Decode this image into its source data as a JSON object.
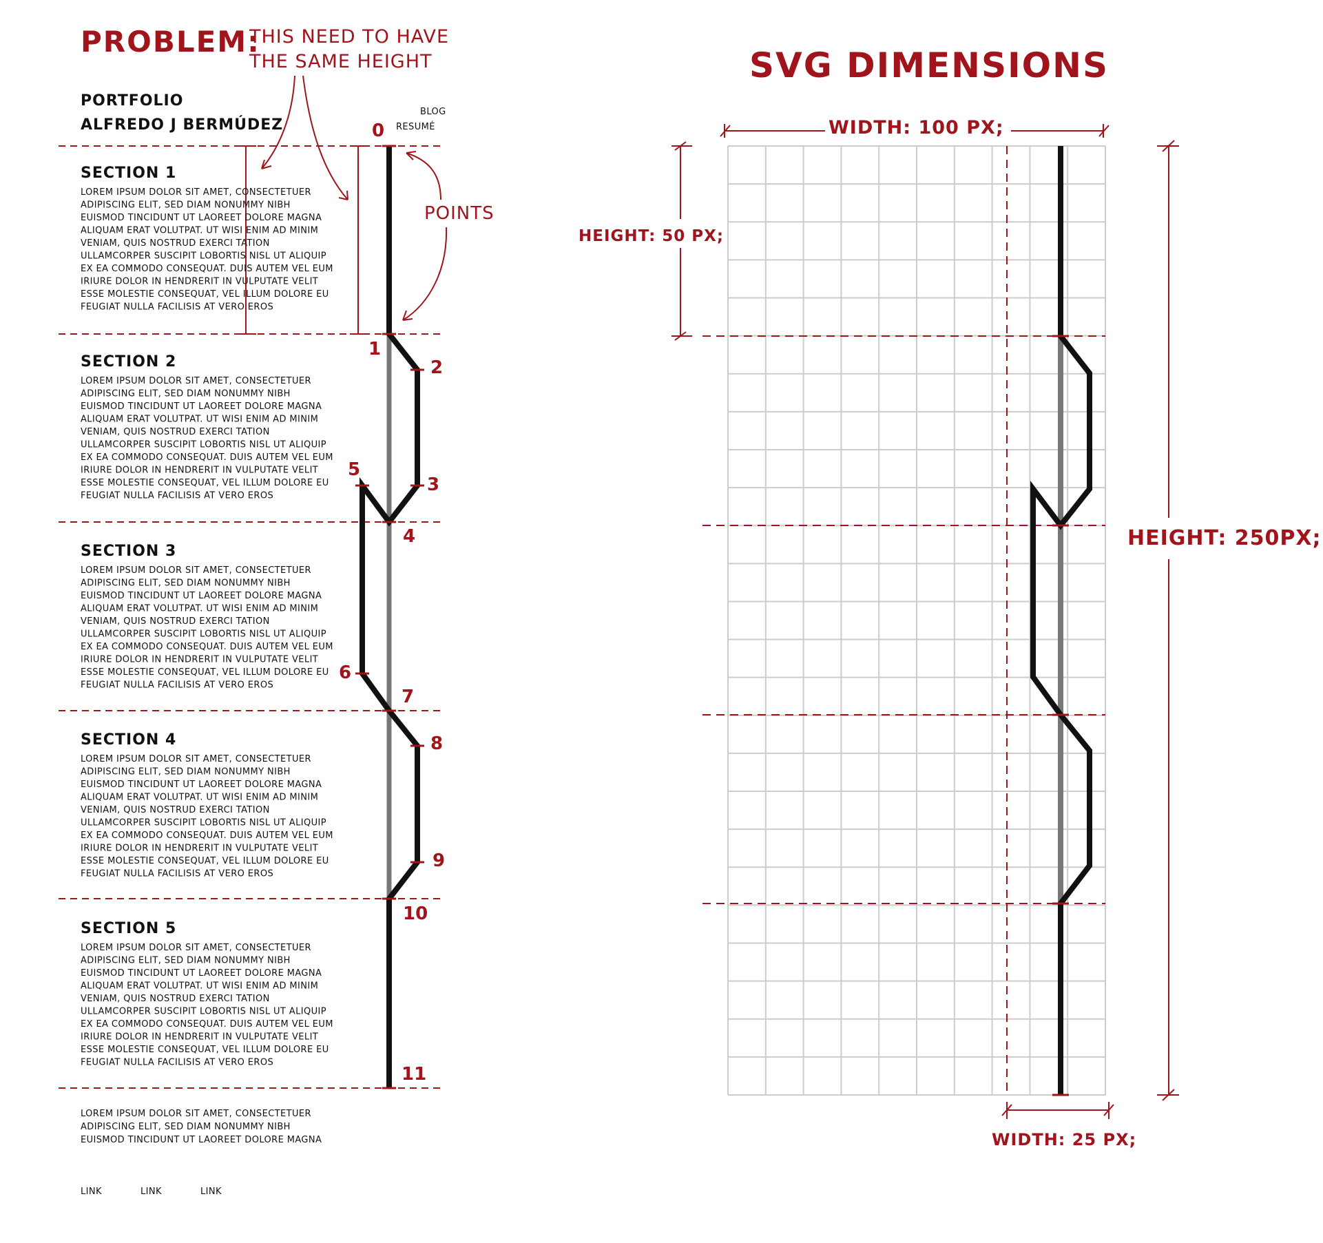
{
  "problem": {
    "label": "PROBLEM:",
    "note_line1": "THIS NEED TO HAVE",
    "note_line2": "THE SAME HEIGHT",
    "points_label": "POINTS"
  },
  "header": {
    "title": "PORTFOLIO",
    "author": "ALFREDO J BERMÚDEZ",
    "nav": [
      "BLOG",
      "RESUMÉ"
    ]
  },
  "sections": [
    {
      "title": "SECTION 1"
    },
    {
      "title": "SECTION 2"
    },
    {
      "title": "SECTION 3"
    },
    {
      "title": "SECTION 4"
    },
    {
      "title": "SECTION 5"
    }
  ],
  "lorem_lines": [
    "LOREM IPSUM DOLOR SIT AMET, CONSECTETUER",
    "ADIPISCING ELIT, SED DIAM NONUMMY NIBH",
    "EUISMOD TINCIDUNT UT LAOREET DOLORE MAGNA",
    "ALIQUAM ERAT VOLUTPAT. UT WISI ENIM AD MINIM",
    "VENIAM, QUIS NOSTRUD EXERCI TATION",
    "ULLAMCORPER SUSCIPIT LOBORTIS NISL UT ALIQUIP",
    "EX EA COMMODO CONSEQUAT. DUIS AUTEM VEL EUM",
    "IRIURE DOLOR IN HENDRERIT IN VULPUTATE VELIT",
    "ESSE MOLESTIE CONSEQUAT, VEL ILLUM DOLORE EU",
    "FEUGIAT NULLA FACILISIS AT VERO EROS"
  ],
  "footer_lines": [
    "LOREM IPSUM DOLOR SIT AMET, CONSECTETUER",
    "ADIPISCING ELIT, SED DIAM NONUMMY NIBH",
    "EUISMOD TINCIDUNT UT LAOREET DOLORE MAGNA"
  ],
  "footer_links": [
    "LINK",
    "LINK",
    "LINK"
  ],
  "point_numbers": [
    "0",
    "1",
    "2",
    "3",
    "4",
    "5",
    "6",
    "7",
    "8",
    "9",
    "10",
    "11"
  ],
  "svg_dimensions": {
    "title": "SVG DIMENSIONS",
    "width_label": "WIDTH: 100 PX;",
    "height_section_label": "HEIGHT: 50 PX;",
    "height_total_label": "HEIGHT: 250PX;",
    "width_small_label": "WIDTH: 25 PX;"
  },
  "colors": {
    "annotation": "#a0141b",
    "ink": "#111111",
    "guide_line": "#777777",
    "grid": "#cccccc"
  }
}
